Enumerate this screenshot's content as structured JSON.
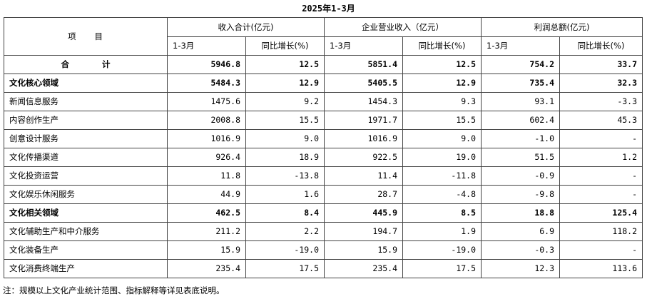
{
  "period_title": "2025年1-3月",
  "header": {
    "item_label": "项　　目",
    "groups": [
      "收入合计(亿元)",
      "企业营业收入（亿元）",
      "利润总额(亿元)"
    ],
    "sub": [
      "1-3月",
      "同比增长(%)",
      "1-3月",
      "同比增长(%)",
      "1-3月",
      "同比增长(%)"
    ]
  },
  "rows": [
    {
      "name": "合　　　　计",
      "level": "total",
      "values": [
        "5946.8",
        "12.5",
        "5851.4",
        "12.5",
        "754.2",
        "33.7"
      ]
    },
    {
      "name": "文化核心领域",
      "level": "section",
      "values": [
        "5484.3",
        "12.9",
        "5405.5",
        "12.9",
        "735.4",
        "32.3"
      ]
    },
    {
      "name": "新闻信息服务",
      "level": "sub",
      "values": [
        "1475.6",
        "9.2",
        "1454.3",
        "9.3",
        "93.1",
        "-3.3"
      ]
    },
    {
      "name": "内容创作生产",
      "level": "sub",
      "values": [
        "2008.8",
        "15.5",
        "1971.7",
        "15.5",
        "602.4",
        "45.3"
      ]
    },
    {
      "name": "创意设计服务",
      "level": "sub",
      "values": [
        "1016.9",
        "9.0",
        "1016.9",
        "9.0",
        "-1.0",
        "-"
      ]
    },
    {
      "name": "文化传播渠道",
      "level": "sub",
      "values": [
        "926.4",
        "18.9",
        "922.5",
        "19.0",
        "51.5",
        "1.2"
      ]
    },
    {
      "name": "文化投资运营",
      "level": "sub",
      "values": [
        "11.8",
        "-13.8",
        "11.4",
        "-11.8",
        "-0.9",
        "-"
      ]
    },
    {
      "name": "文化娱乐休闲服务",
      "level": "sub",
      "values": [
        "44.9",
        "1.6",
        "28.7",
        "-4.8",
        "-9.8",
        "-"
      ]
    },
    {
      "name": "文化相关领域",
      "level": "section",
      "values": [
        "462.5",
        "8.4",
        "445.9",
        "8.5",
        "18.8",
        "125.4"
      ]
    },
    {
      "name": "文化辅助生产和中介服务",
      "level": "sub",
      "values": [
        "211.2",
        "2.2",
        "194.7",
        "1.9",
        "6.9",
        "118.2"
      ]
    },
    {
      "name": "文化装备生产",
      "level": "sub",
      "values": [
        "15.9",
        "-19.0",
        "15.9",
        "-19.0",
        "-0.3",
        "-"
      ]
    },
    {
      "name": "文化消费终端生产",
      "level": "sub",
      "values": [
        "235.4",
        "17.5",
        "235.4",
        "17.5",
        "12.3",
        "113.6"
      ]
    }
  ],
  "footnote": "注：规模以上文化产业统计范围、指标解释等详见表底说明。"
}
